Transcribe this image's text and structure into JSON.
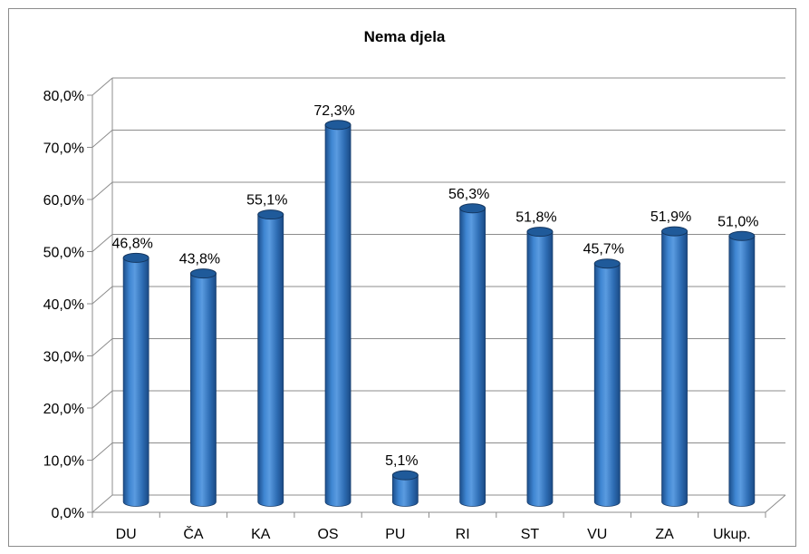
{
  "chart_data": {
    "type": "bar",
    "style": "3d-cylinder",
    "title": "Nema djela",
    "categories": [
      "DU",
      "ČA",
      "KA",
      "OS",
      "PU",
      "RI",
      "ST",
      "VU",
      "ZA",
      "Ukup."
    ],
    "values": [
      46.8,
      43.8,
      55.1,
      72.3,
      5.1,
      56.3,
      51.8,
      45.7,
      51.9,
      51.0
    ],
    "data_labels": [
      "46,8%",
      "43,8%",
      "55,1%",
      "72,3%",
      "5,1%",
      "56,3%",
      "51,8%",
      "45,7%",
      "51,9%",
      "51,0%"
    ],
    "ylim": [
      0,
      80
    ],
    "yticks": [
      0,
      10,
      20,
      30,
      40,
      50,
      60,
      70,
      80
    ],
    "ytick_labels": [
      "0,0%",
      "10,0%",
      "20,0%",
      "30,0%",
      "40,0%",
      "50,0%",
      "60,0%",
      "70,0%",
      "80,0%"
    ],
    "grid": true,
    "legend": false,
    "bar_color": "#2f6fb5",
    "bar_top_color": "#1f5a9a",
    "grid_color": "#8c8c8c"
  }
}
